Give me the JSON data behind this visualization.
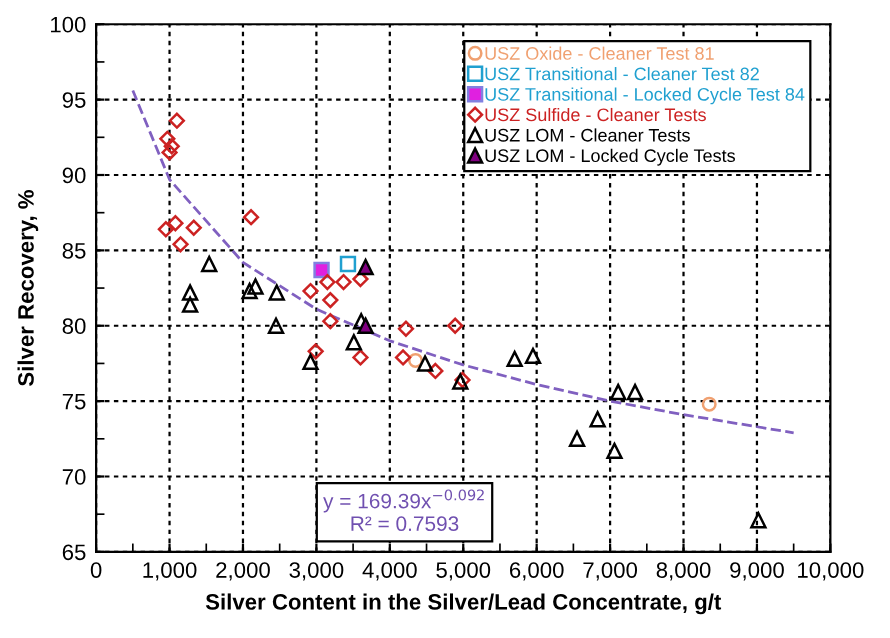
{
  "chart_data": {
    "type": "scatter",
    "xlabel": "Silver Content in the Silver/Lead Concentrate, g/t",
    "ylabel": "Silver Recovery, %",
    "xlim": [
      0,
      10000
    ],
    "xticks": [
      0,
      {
        "value": 1000,
        "label": "1,000"
      },
      {
        "value": 2000,
        "label": "2,000"
      },
      {
        "value": 3000,
        "label": "3,000"
      },
      {
        "value": 4000,
        "label": "4,000"
      },
      {
        "value": 5000,
        "label": "5,000"
      },
      {
        "value": 6000,
        "label": "6,000"
      },
      {
        "value": 7000,
        "label": "7,000"
      },
      {
        "value": 8000,
        "label": "8,000"
      },
      {
        "value": 9000,
        "label": "9,000"
      },
      {
        "value": 10000,
        "label": "10,000"
      }
    ],
    "ylim": [
      65,
      100
    ],
    "yticks": [
      65,
      70,
      75,
      80,
      85,
      90,
      95,
      100
    ],
    "grid": true,
    "legend": "top right",
    "annotations": [
      "y = 169.39x$^{−0.092}$",
      "R² = 0.7593"
    ],
    "series": [
      {
        "name": "USZ Oxide - Cleaner Test 81",
        "marker": "circle",
        "color": "#f0a070",
        "x": [
          4350,
          8350
        ],
        "values": [
          77.7,
          74.8
        ]
      },
      {
        "name": "USZ Transitional - Cleaner Test 82",
        "marker": "square",
        "color": "#20a0d0",
        "x": [
          3430
        ],
        "values": [
          84.1
        ]
      },
      {
        "name": "USZ Transitional - Locked Cycle Test 84",
        "marker": "square",
        "color": "#8080e0",
        "colors": [
          "#e020e0"
        ],
        "x": [
          3070
        ],
        "values": [
          83.7
        ]
      },
      {
        "name": "USZ Sulfide - Cleaner Tests",
        "marker": "diamond",
        "color": "#cc2222",
        "x": [
          1100,
          970,
          1030,
          1000,
          950,
          1080,
          1330,
          1150,
          2110,
          2920,
          3150,
          3190,
          3370,
          3600,
          3190,
          2990,
          3600,
          4220,
          4890,
          4180,
          4620,
          4990
        ],
        "values": [
          93.6,
          92.4,
          91.9,
          91.5,
          86.4,
          86.8,
          86.5,
          85.4,
          87.2,
          82.3,
          82.9,
          81.7,
          82.9,
          83.1,
          80.3,
          78.3,
          77.9,
          79.8,
          80.0,
          77.9,
          77.0,
          76.4
        ]
      },
      {
        "name": "USZ LOM - Cleaner Tests",
        "marker": "triangle",
        "color": "#000000",
        "x": [
          1540,
          1280,
          1280,
          2090,
          2170,
          2460,
          2450,
          2920,
          3510,
          3610,
          4480,
          4960,
          5700,
          5950,
          7110,
          7340,
          6830,
          6550,
          7060,
          9020
        ],
        "values": [
          84.1,
          82.2,
          81.4,
          82.3,
          82.6,
          82.2,
          80.0,
          77.6,
          78.9,
          80.3,
          77.5,
          76.3,
          77.8,
          78.0,
          75.6,
          75.6,
          73.8,
          72.5,
          71.7,
          67.1
        ]
      },
      {
        "name": "USZ LOM - Locked Cycle Tests",
        "marker": "triangle",
        "color": "#000000",
        "colors": [
          "#800080",
          "#800080"
        ],
        "x": [
          3670,
          3670
        ],
        "values": [
          83.9,
          80.0
        ]
      },
      {
        "type": "line",
        "color": "#8060c0",
        "line_style": "dashed",
        "marker": "none",
        "x": [
          500,
          1000,
          2000,
          3000,
          4000,
          5000,
          6000,
          7000,
          8000,
          9000,
          9500
        ],
        "values": [
          95.6,
          89.7,
          84.2,
          81.1,
          79.0,
          77.4,
          76.1,
          75.0,
          74.1,
          73.3,
          72.9
        ]
      }
    ]
  }
}
